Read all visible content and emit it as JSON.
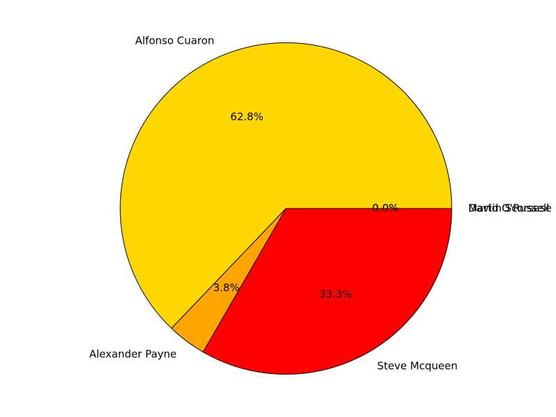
{
  "chart_data": {
    "type": "pie",
    "title": "",
    "slices": [
      {
        "label": "Alfonso Cuaron",
        "value": 62.8,
        "pct_label": "62.8%",
        "color": "#ffd700"
      },
      {
        "label": "Alexander Payne",
        "value": 3.8,
        "pct_label": "3.8%",
        "color": "#ffa500"
      },
      {
        "label": "Steve Mcqueen",
        "value": 33.3,
        "pct_label": "33.3%",
        "color": "#ff0000"
      },
      {
        "label": "Martin Scorsese",
        "value": 0.0,
        "pct_label": "0.0%",
        "color": "#ff8c00"
      },
      {
        "label": "David O'Russell",
        "value": 0.0,
        "pct_label": "0.0%",
        "color": "#b22222"
      }
    ],
    "start_angle_deg": 0,
    "direction": "counterclockwise",
    "edge_color": "#000000"
  }
}
